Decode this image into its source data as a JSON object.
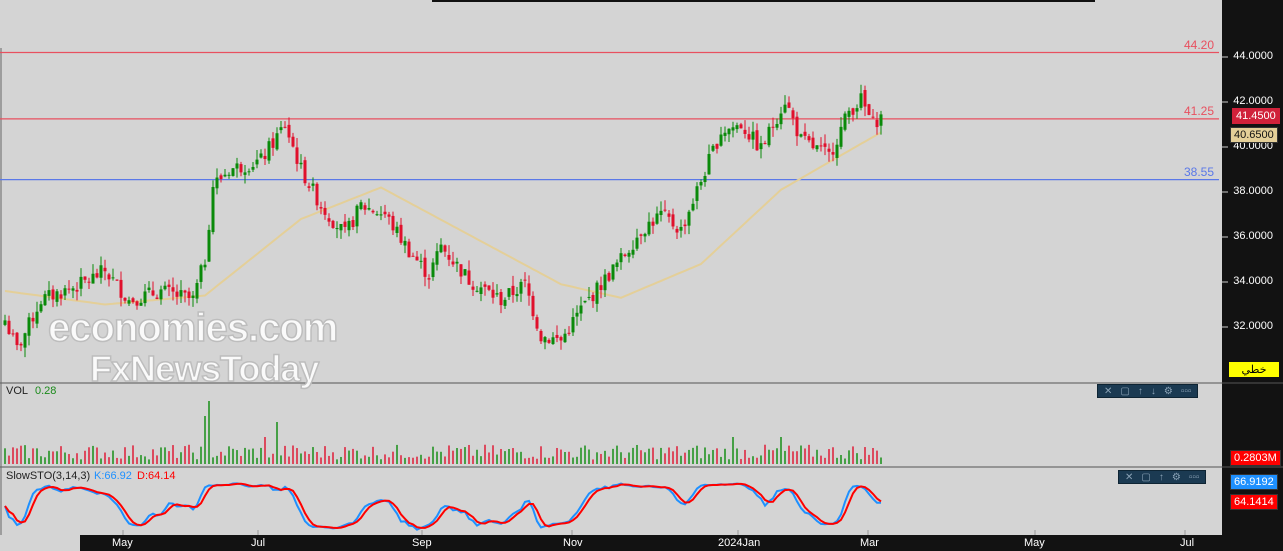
{
  "price_axis": {
    "ticks": [
      "44.0000",
      "42.0000",
      "40.0000",
      "38.0000",
      "36.0000",
      "34.0000",
      "32.0000"
    ],
    "last_price": "41.4500",
    "ma_value": "40.6500",
    "chart_type_label": "خطي",
    "last_color": "#d0213a",
    "ma_color": "#e4cf98"
  },
  "levels": [
    {
      "label": "44.20",
      "value": 44.2,
      "color": "#e8505f"
    },
    {
      "label": "41.25",
      "value": 41.25,
      "color": "#e8505f"
    },
    {
      "label": "38.55",
      "value": 38.55,
      "color": "#5a78e8"
    }
  ],
  "volume": {
    "title": "VOL",
    "value": "0.28",
    "axis_value": "0.2803M"
  },
  "stoch": {
    "title": "SlowSTO(3,14,3)",
    "k_label": "K:66.92",
    "d_label": "D:64.14",
    "k_axis": "66.9192",
    "d_axis": "64.1414",
    "k_color": "#1e90ff",
    "d_color": "#ff0000"
  },
  "toolbar_icons": [
    "close-icon",
    "maximize-icon",
    "move-up-icon",
    "move-down-icon",
    "settings-icon",
    "more-icon"
  ],
  "time_axis": [
    "May",
    "Jul",
    "Sep",
    "Nov",
    "2024Jan",
    "Mar",
    "May",
    "Jul"
  ],
  "watermark": {
    "line1": "economies.com",
    "line2": "FxNewsToday"
  },
  "chart_data": {
    "type": "candlestick",
    "ylim": [
      30,
      45
    ],
    "price_path": [
      [
        0,
        32.3
      ],
      [
        3,
        31
      ],
      [
        9,
        33.2
      ],
      [
        19,
        33.9
      ],
      [
        25,
        34.5
      ],
      [
        31,
        33.2
      ],
      [
        39,
        33.6
      ],
      [
        47,
        33.2
      ],
      [
        50,
        35
      ],
      [
        52,
        38.3
      ],
      [
        56,
        39
      ],
      [
        64,
        39.4
      ],
      [
        70,
        41
      ],
      [
        74,
        39
      ],
      [
        79,
        37.4
      ],
      [
        85,
        36.1
      ],
      [
        89,
        37.4
      ],
      [
        95,
        37
      ],
      [
        101,
        35.4
      ],
      [
        106,
        34.3
      ],
      [
        109,
        35.6
      ],
      [
        116,
        34.1
      ],
      [
        124,
        33.2
      ],
      [
        130,
        33.9
      ],
      [
        134,
        31.6
      ],
      [
        139,
        31.4
      ],
      [
        144,
        32.8
      ],
      [
        149,
        33.9
      ],
      [
        154,
        35
      ],
      [
        159,
        36.3
      ],
      [
        164,
        37
      ],
      [
        169,
        36.3
      ],
      [
        174,
        38.5
      ],
      [
        179,
        40.7
      ],
      [
        184,
        41
      ],
      [
        189,
        39.9
      ],
      [
        195,
        42.1
      ],
      [
        199,
        40.3
      ],
      [
        206,
        39.6
      ],
      [
        211,
        41.6
      ],
      [
        214,
        42.1
      ],
      [
        217,
        41
      ],
      [
        219,
        41.45
      ]
    ],
    "moving_average": [
      [
        0,
        33.6
      ],
      [
        25,
        33
      ],
      [
        50,
        33.4
      ],
      [
        74,
        36.8
      ],
      [
        94,
        38.2
      ],
      [
        116,
        36.1
      ],
      [
        139,
        33.9
      ],
      [
        154,
        33.3
      ],
      [
        174,
        34.8
      ],
      [
        194,
        38.1
      ],
      [
        219,
        40.65
      ]
    ]
  }
}
